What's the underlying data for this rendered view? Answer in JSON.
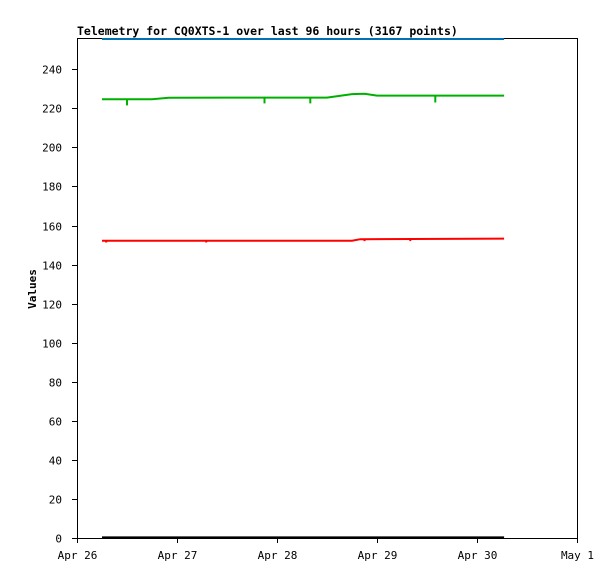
{
  "chart_data": {
    "type": "line",
    "title": "Telemetry for CQ0XTS-1 over last 96 hours (3167 points)",
    "xlabel": "",
    "ylabel": "Values",
    "x_ticks": [
      "Apr 26",
      "Apr 27",
      "Apr 28",
      "Apr 29",
      "Apr 30",
      "May 1"
    ],
    "xlim": [
      "2024-04-26T00:00",
      "2024-05-01T00:00"
    ],
    "y_ticks": [
      0,
      20,
      40,
      60,
      80,
      100,
      120,
      140,
      160,
      180,
      200,
      220,
      240
    ],
    "ylim": [
      0,
      256
    ],
    "grid": false,
    "legend": "none",
    "series": [
      {
        "color": "#0072b2",
        "x": [
          "2024-04-26T06:00",
          "2024-04-30T06:30"
        ],
        "y": [
          255.5,
          255.5
        ]
      },
      {
        "color": "#00b000",
        "x": [
          "2024-04-26T06:00",
          "2024-04-26T18:00",
          "2024-04-26T22:00",
          "2024-04-27T12:00",
          "2024-04-28T00:00",
          "2024-04-28T12:00",
          "2024-04-28T18:00",
          "2024-04-28T21:00",
          "2024-04-29T00:00",
          "2024-04-30T06:30"
        ],
        "y": [
          224.6,
          224.6,
          225.4,
          225.5,
          225.5,
          225.5,
          227.3,
          227.5,
          226.5,
          226.5
        ],
        "dips": [
          {
            "x": "2024-04-26T12:00",
            "y": 221.5
          },
          {
            "x": "2024-04-27T21:00",
            "y": 222.5
          },
          {
            "x": "2024-04-28T08:00",
            "y": 222.5
          },
          {
            "x": "2024-04-29T14:00",
            "y": 223.0
          }
        ]
      },
      {
        "color": "#ff0000",
        "x": [
          "2024-04-26T06:00",
          "2024-04-28T18:00",
          "2024-04-28T20:00",
          "2024-04-30T06:30"
        ],
        "y": [
          152.2,
          152.2,
          153.0,
          153.3
        ],
        "dips": [
          {
            "x": "2024-04-26T07:00",
            "y": 151.3
          },
          {
            "x": "2024-04-27T07:00",
            "y": 151.3
          },
          {
            "x": "2024-04-28T21:00",
            "y": 152.0
          },
          {
            "x": "2024-04-29T08:00",
            "y": 152.0
          }
        ]
      },
      {
        "color": "#000000",
        "x": [
          "2024-04-26T06:00",
          "2024-04-30T06:30"
        ],
        "y": [
          0.3,
          0.3
        ]
      }
    ]
  }
}
